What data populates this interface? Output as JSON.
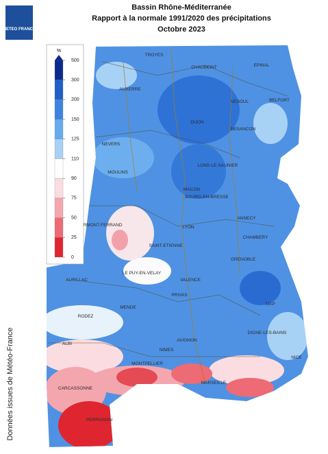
{
  "logo": "METEO FRANCE",
  "title": [
    "Bassin Rhône-Méditerranée",
    "Rapport à la normale 1991/2020 des précipitations",
    "Octobre 2023"
  ],
  "source": "Données issues de Météo-France",
  "legend": {
    "unit": "%",
    "ticks": [
      500,
      300,
      200,
      150,
      125,
      110,
      90,
      75,
      50,
      25,
      0
    ],
    "colors": [
      "#0b2a8c",
      "#1f5fc8",
      "#3d84e0",
      "#66abee",
      "#a8d1f6",
      "#ffffff",
      "#fbdde1",
      "#f4a6ae",
      "#ec6b74",
      "#df2630"
    ]
  },
  "cities": [
    "TROYES",
    "CHAUMONT",
    "EPINAL",
    "AUXERRE",
    "VESOUL",
    "BELFORT",
    "DIJON",
    "BESANCON",
    "NEVERS",
    "LONS-LE-SAUNIER",
    "MOULINS",
    "MACON",
    "BOURG-EN-BRESSE",
    "ANNECY",
    "RMONT-FERRAND",
    "LYON",
    "CHAMBERY",
    "SAINT-ETIENNE",
    "GRENOBLE",
    "AURILLAC",
    "LE PUY-EN-VELAY",
    "VALENCE",
    "PRIVAS",
    "GAP",
    "MENDE",
    "RODEZ",
    "DIGNE-LES-BAINS",
    "AVIGNON",
    "ALBI",
    "NIMES",
    "NICE",
    "MONTPELLIER",
    "MARSEILLE",
    "CARCASSONNE",
    "PERPIGNAN"
  ]
}
